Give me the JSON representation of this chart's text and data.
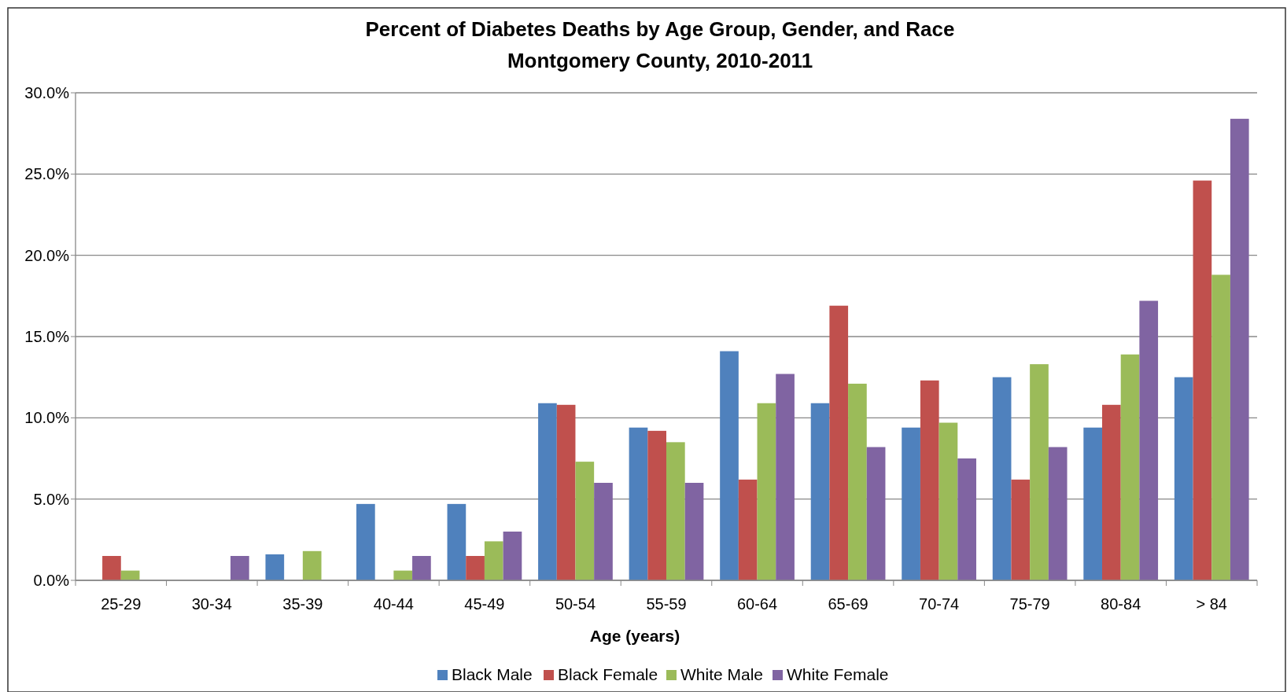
{
  "chart_data": {
    "type": "bar",
    "title": "Percent of Diabetes Deaths by Age Group, Gender, and Race",
    "subtitle": "Montgomery County, 2010-2011",
    "xlabel": "Age (years)",
    "categories": [
      "25-29",
      "30-34",
      "35-39",
      "40-44",
      "45-49",
      "50-54",
      "55-59",
      "60-64",
      "65-69",
      "70-74",
      "75-79",
      "80-84",
      "> 84"
    ],
    "series": [
      {
        "name": "Black Male",
        "color": "#4f81bd",
        "values": [
          0,
          0,
          1.6,
          4.7,
          4.7,
          10.9,
          9.4,
          14.1,
          10.9,
          9.4,
          12.5,
          9.4,
          12.5
        ]
      },
      {
        "name": "Black Female",
        "color": "#c0504d",
        "values": [
          1.5,
          0,
          0,
          0,
          1.5,
          10.8,
          9.2,
          6.2,
          16.9,
          12.3,
          6.2,
          10.8,
          24.6
        ]
      },
      {
        "name": "White Male",
        "color": "#9bbb59",
        "values": [
          0.6,
          0,
          1.8,
          0.6,
          2.4,
          7.3,
          8.5,
          10.9,
          12.1,
          9.7,
          13.3,
          13.9,
          18.8
        ]
      },
      {
        "name": "White Female",
        "color": "#8064a2",
        "values": [
          0,
          1.5,
          0,
          1.5,
          3.0,
          6.0,
          6.0,
          12.7,
          8.2,
          7.5,
          8.2,
          17.2,
          28.4
        ]
      }
    ],
    "ylim": [
      0,
      30
    ],
    "yticks": [
      {
        "value": 0,
        "label": "0.0%"
      },
      {
        "value": 5,
        "label": "5.0%"
      },
      {
        "value": 10,
        "label": "10.0%"
      },
      {
        "value": 15,
        "label": "15.0%"
      },
      {
        "value": 20,
        "label": "20.0%"
      },
      {
        "value": 25,
        "label": "25.0%"
      },
      {
        "value": 30,
        "label": "30.0%"
      }
    ],
    "grid": "y",
    "legend": "bottom"
  }
}
